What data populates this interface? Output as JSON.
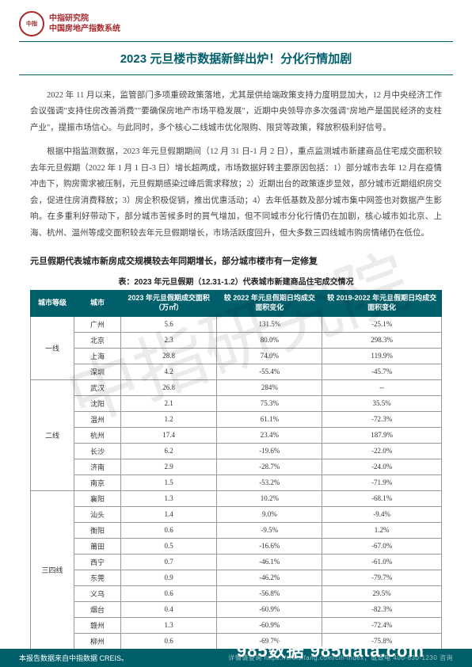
{
  "header": {
    "logo_inner": "中指",
    "org_line1": "中指研究院",
    "org_line2": "中国房地产指数系统"
  },
  "title": "2023 元旦楼市数据新鲜出炉！分化行情加剧",
  "paragraphs": [
    "2022 年 11 月以来，监管部门多项重磅政策落地，尤其是供给端政策支持力度明显加大，12 月中央经济工作会议强调\"支持住房改善消费\"\"要确保房地产市场平稳发展\"，近期中央领导亦多次强调\"房地产是国民经济的支柱产业\"，提振市场信心。与此同时，多个核心二线城市优化限购、限贷等政策，释放积极利好信号。",
    "根据中指监测数据，2023 年元旦假期期间（12 月 31 日-1 月 2 日），重点监测城市新建商品住宅成交面积较去年元旦假期（2022 年 1 月 1 日-3 日）增长超两成，市场数据好转主要原因包括：1）部分城市去年 12 月在疫情冲击下，购房需求被压制，元旦假期感染过峰后需求释放；2）近期出台的政策逐步显效，部分城市近期组织房交会，促进住房消费释放；3）房企积极促销，推出优惠活动；4）去年低基数及部分城市集中网签也对数据产生影响。在多重利好带动下，部分城市苦候多时的買气增加，但不同城市分化行情仍在加剧，核心城市如北京、上海、杭州、温州等成交面积较去年元旦假期增长，市场活跃度回升，但大多数三四线城市购房情绪仍在低位。"
  ],
  "subtitle": "元旦假期代表城市新房成交规模较去年同期增长，部分城市楼市有一定修复",
  "table": {
    "caption": "表：2023 年元旦假期（12.31-1.2）代表城市新建商品住宅成交情况",
    "headers": [
      "城市等级",
      "城市",
      "2023 年元旦假期成交面积（万㎡）",
      "较 2022 年元旦假期日均成交面积变化",
      "较 2019-2022 年元旦假期日均成交面积变化"
    ],
    "tiers": [
      {
        "label": "一线",
        "rows": [
          {
            "city": "广州",
            "area": "5.6",
            "vs2022": "131.5%",
            "vs1922": "-25.1%"
          },
          {
            "city": "北京",
            "area": "2.3",
            "vs2022": "80.0%",
            "vs1922": "298.3%"
          },
          {
            "city": "上海",
            "area": "28.8",
            "vs2022": "74.0%",
            "vs1922": "119.9%"
          },
          {
            "city": "深圳",
            "area": "4.2",
            "vs2022": "-55.4%",
            "vs1922": "-45.7%"
          }
        ]
      },
      {
        "label": "二线",
        "rows": [
          {
            "city": "武汉",
            "area": "26.8",
            "vs2022": "284%",
            "vs1922": "--"
          },
          {
            "city": "沈阳",
            "area": "2.1",
            "vs2022": "75.3%",
            "vs1922": "35.5%"
          },
          {
            "city": "温州",
            "area": "1.2",
            "vs2022": "61.1%",
            "vs1922": "-72.3%"
          },
          {
            "city": "杭州",
            "area": "17.4",
            "vs2022": "23.4%",
            "vs1922": "187.9%"
          },
          {
            "city": "长沙",
            "area": "6.2",
            "vs2022": "-19.6%",
            "vs1922": "-22.0%"
          },
          {
            "city": "济南",
            "area": "2.9",
            "vs2022": "-28.7%",
            "vs1922": "-24.0%"
          },
          {
            "city": "南京",
            "area": "1.5",
            "vs2022": "-53.2%",
            "vs1922": "-71.9%"
          }
        ]
      },
      {
        "label": "三四线",
        "rows": [
          {
            "city": "襄阳",
            "area": "1.3",
            "vs2022": "10.2%",
            "vs1922": "-68.1%"
          },
          {
            "city": "汕头",
            "area": "1.4",
            "vs2022": "9.0%",
            "vs1922": "-9.4%"
          },
          {
            "city": "衡阳",
            "area": "0.6",
            "vs2022": "-9.5%",
            "vs1922": "1.2%"
          },
          {
            "city": "莆田",
            "area": "0.5",
            "vs2022": "-16.6%",
            "vs1922": "-67.0%"
          },
          {
            "city": "西宁",
            "area": "0.7",
            "vs2022": "-46.1%",
            "vs1922": "-61.0%"
          },
          {
            "city": "东莞",
            "area": "0.9",
            "vs2022": "-46.2%",
            "vs1922": "-79.7%"
          },
          {
            "city": "义乌",
            "area": "0.6",
            "vs2022": "-56.8%",
            "vs1922": "29.5%"
          },
          {
            "city": "烟台",
            "area": "0.4",
            "vs2022": "-60.9%",
            "vs1922": "-82.3%"
          },
          {
            "city": "赣州",
            "area": "1.3",
            "vs2022": "-60.9%",
            "vs1922": "-72.4%"
          },
          {
            "city": "柳州",
            "area": "0.6",
            "vs2022": "-69.7%",
            "vs1922": "-75.8%"
          }
        ]
      }
    ]
  },
  "footer": {
    "left": "本报告数据来自中指数据 CREIS。",
    "url": "详情请查询 https://creis.fang.com/cih-index，或致电 400-630-1230 咨询",
    "brand": "985数据 985data.com"
  },
  "watermark": "中指研究院",
  "colors": {
    "teal": "#005f6b",
    "red": "#a8282b"
  }
}
